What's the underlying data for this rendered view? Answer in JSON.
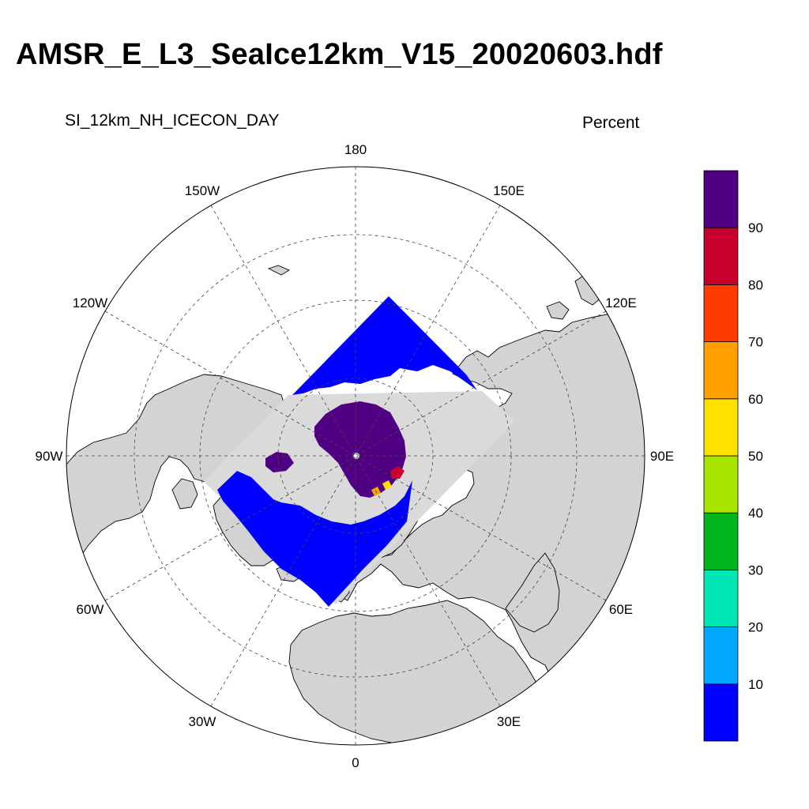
{
  "title": "AMSR_E_L3_SeaIce12km_V15_20020603.hdf",
  "variable": "SI_12km_NH_ICECON_DAY",
  "units": "Percent",
  "map": {
    "projection": "north-polar-stereographic",
    "land_color": "#d3d3d3",
    "ocean_color": "#ffffff",
    "graticule_style": "dashed",
    "longitude_labels": [
      {
        "lon": 180,
        "text": "180"
      },
      {
        "lon": -150,
        "text": "150W"
      },
      {
        "lon": 150,
        "text": "150E"
      },
      {
        "lon": -120,
        "text": "120W"
      },
      {
        "lon": 120,
        "text": "120E"
      },
      {
        "lon": -90,
        "text": "90W"
      },
      {
        "lon": 90,
        "text": "90E"
      },
      {
        "lon": -60,
        "text": "60W"
      },
      {
        "lon": 60,
        "text": "60E"
      },
      {
        "lon": -30,
        "text": "30W"
      },
      {
        "lon": 30,
        "text": "30E"
      },
      {
        "lon": 0,
        "text": "0"
      }
    ]
  },
  "colorbar": {
    "levels": [
      10,
      20,
      30,
      40,
      50,
      60,
      70,
      80,
      90
    ],
    "labels": [
      "10",
      "20",
      "30",
      "40",
      "50",
      "60",
      "70",
      "80",
      "90"
    ],
    "colors": [
      "#0000ff",
      "#00a8ff",
      "#00e6b4",
      "#00b41e",
      "#a8e600",
      "#ffe100",
      "#ffa000",
      "#ff3c00",
      "#c8002d",
      "#500082"
    ]
  }
}
